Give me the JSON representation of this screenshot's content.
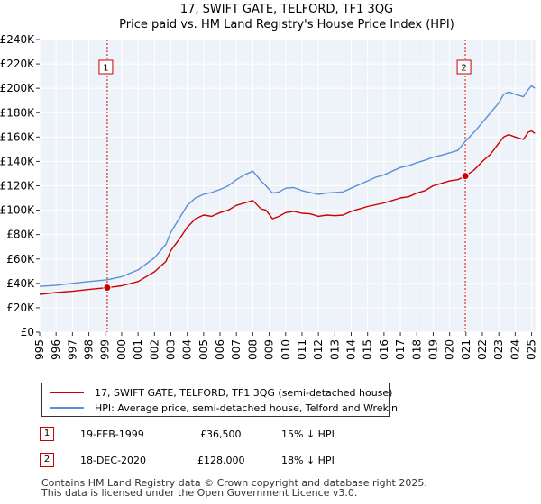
{
  "chart_data": {
    "type": "line",
    "title": "17, SWIFT GATE, TELFORD, TF1 3QG",
    "subtitle": "Price paid vs. HM Land Registry's House Price Index (HPI)",
    "xlabel": "",
    "ylabel": "",
    "xlim": [
      1995,
      2025.3
    ],
    "ylim": [
      0,
      240000
    ],
    "y_ticks": [
      {
        "value": 0,
        "label": "£0"
      },
      {
        "value": 20000,
        "label": "£20K"
      },
      {
        "value": 40000,
        "label": "£40K"
      },
      {
        "value": 60000,
        "label": "£60K"
      },
      {
        "value": 80000,
        "label": "£80K"
      },
      {
        "value": 100000,
        "label": "£100K"
      },
      {
        "value": 120000,
        "label": "£120K"
      },
      {
        "value": 140000,
        "label": "£140K"
      },
      {
        "value": 160000,
        "label": "£160K"
      },
      {
        "value": 180000,
        "label": "£180K"
      },
      {
        "value": 200000,
        "label": "£200K"
      },
      {
        "value": 220000,
        "label": "£220K"
      },
      {
        "value": 240000,
        "label": "£240K"
      }
    ],
    "x_ticks": [
      "1995",
      "1996",
      "1997",
      "1998",
      "1999",
      "2000",
      "2001",
      "2002",
      "2003",
      "2004",
      "2005",
      "2006",
      "2007",
      "2008",
      "2009",
      "2010",
      "2011",
      "2012",
      "2013",
      "2014",
      "2015",
      "2016",
      "2017",
      "2018",
      "2019",
      "2020",
      "2021",
      "2022",
      "2023",
      "2024",
      "2025"
    ],
    "grid": true,
    "series": [
      {
        "name": "17, SWIFT GATE, TELFORD, TF1 3QG (semi-detached house)",
        "color": "#cc0000",
        "x": [
          1995.0,
          1996.0,
          1997.0,
          1998.0,
          1999.12,
          2000.0,
          2001.0,
          2002.0,
          2002.7,
          2003.0,
          2003.5,
          2004.0,
          2004.5,
          2005.0,
          2005.5,
          2006.0,
          2006.5,
          2007.0,
          2007.5,
          2008.0,
          2008.5,
          2008.8,
          2009.2,
          2009.6,
          2010.0,
          2010.5,
          2011.0,
          2011.5,
          2012.0,
          2012.5,
          2013.0,
          2013.5,
          2014.0,
          2014.5,
          2015.0,
          2015.5,
          2016.0,
          2016.5,
          2017.0,
          2017.5,
          2018.0,
          2018.5,
          2019.0,
          2019.5,
          2020.0,
          2020.5,
          2020.96,
          2021.5,
          2022.0,
          2022.5,
          2023.0,
          2023.3,
          2023.6,
          2024.0,
          2024.5,
          2024.8,
          2025.0,
          2025.2
        ],
        "y": [
          31000,
          32500,
          33500,
          35000,
          36500,
          38000,
          41500,
          49500,
          58000,
          67000,
          76000,
          86000,
          93000,
          96000,
          95000,
          98000,
          100000,
          104000,
          106000,
          108000,
          101000,
          100000,
          93000,
          95000,
          98000,
          99000,
          97500,
          97000,
          95000,
          96000,
          95500,
          96000,
          99000,
          101000,
          103000,
          104500,
          106000,
          108000,
          110000,
          111000,
          114000,
          116000,
          120000,
          122000,
          124000,
          125000,
          128000,
          133000,
          140000,
          146000,
          155000,
          160000,
          162000,
          160000,
          158000,
          164000,
          165000,
          163000
        ]
      },
      {
        "name": "HPI: Average price, semi-detached house, Telford and Wrekin",
        "color": "#5b8fd6",
        "x": [
          1995.0,
          1996.0,
          1997.0,
          1998.0,
          1999.12,
          2000.0,
          2001.0,
          2002.0,
          2002.7,
          2003.0,
          2003.5,
          2004.0,
          2004.5,
          2005.0,
          2005.5,
          2006.0,
          2006.5,
          2007.0,
          2007.5,
          2008.0,
          2008.5,
          2008.8,
          2009.2,
          2009.6,
          2010.0,
          2010.5,
          2011.0,
          2011.5,
          2012.0,
          2012.5,
          2013.0,
          2013.5,
          2014.0,
          2014.5,
          2015.0,
          2015.5,
          2016.0,
          2016.5,
          2017.0,
          2017.5,
          2018.0,
          2018.5,
          2019.0,
          2019.5,
          2020.0,
          2020.5,
          2020.96,
          2021.5,
          2022.0,
          2022.5,
          2023.0,
          2023.3,
          2023.6,
          2024.0,
          2024.5,
          2024.8,
          2025.0,
          2025.2
        ],
        "y": [
          37500,
          38500,
          40000,
          41500,
          43000,
          45500,
          51000,
          61000,
          72000,
          82000,
          93000,
          104000,
          110000,
          113000,
          114500,
          117000,
          120000,
          125000,
          129000,
          132000,
          124000,
          120000,
          114000,
          115000,
          118000,
          118500,
          116000,
          114500,
          113000,
          114000,
          114500,
          115000,
          118000,
          121000,
          124000,
          127000,
          129000,
          132000,
          135000,
          136500,
          139000,
          141000,
          143500,
          145000,
          147000,
          149000,
          156500,
          164000,
          172000,
          180000,
          188000,
          195000,
          197000,
          195000,
          193000,
          199000,
          202000,
          200000
        ]
      }
    ],
    "annotations": [
      {
        "label": "1",
        "x": 1999.12,
        "y": 36500
      },
      {
        "label": "2",
        "x": 2020.96,
        "y": 128000
      }
    ]
  },
  "legend": {
    "items": [
      {
        "label": "17, SWIFT GATE, TELFORD, TF1 3QG (semi-detached house)",
        "color": "#cc0000"
      },
      {
        "label": "HPI: Average price, semi-detached house, Telford and Wrekin",
        "color": "#5b8fd6"
      }
    ]
  },
  "transactions": [
    {
      "num": "1",
      "date": "19-FEB-1999",
      "price": "£36,500",
      "hpi": "15% ↓ HPI"
    },
    {
      "num": "2",
      "date": "18-DEC-2020",
      "price": "£128,000",
      "hpi": "18% ↓ HPI"
    }
  ],
  "footer": {
    "line1": "Contains HM Land Registry data © Crown copyright and database right 2025.",
    "line2": "This data is licensed under the Open Government Licence v3.0."
  }
}
